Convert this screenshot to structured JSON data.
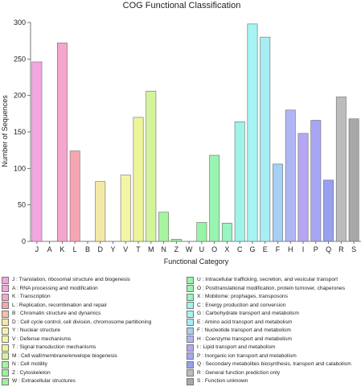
{
  "chart_data": {
    "type": "bar",
    "title": "COG Functional Classification",
    "xlabel": "Functional Category",
    "ylabel": "Number of Sequences",
    "ylim": [
      0,
      300
    ],
    "yticks": [
      "0",
      "50",
      "100",
      "150",
      "200",
      "250",
      "300"
    ],
    "grid": false,
    "categories": [
      "J",
      "A",
      "K",
      "L",
      "B",
      "D",
      "Y",
      "V",
      "T",
      "M",
      "N",
      "Z",
      "W",
      "U",
      "O",
      "X",
      "C",
      "G",
      "E",
      "F",
      "H",
      "I",
      "P",
      "Q",
      "R",
      "S"
    ],
    "values": [
      246,
      0,
      272,
      124,
      0,
      82,
      0,
      91,
      170,
      206,
      40,
      3,
      0,
      26,
      118,
      25,
      164,
      298,
      280,
      106,
      180,
      148,
      166,
      84,
      198,
      168
    ],
    "colors": [
      "#f4a6e0",
      "#f4a6e0",
      "#f4a6cc",
      "#f4a6b2",
      "#f4c0a6",
      "#f4e8a6",
      "#f4f4a6",
      "#f4f4a6",
      "#eef49a",
      "#d4f49a",
      "#a6f4a0",
      "#98f498",
      "#98f498",
      "#98f4a6",
      "#98f4b0",
      "#98f4c0",
      "#9ef4e8",
      "#a6f4f4",
      "#a6eef4",
      "#a6d0f4",
      "#b0b6f4",
      "#b6a6f4",
      "#a6a6f4",
      "#98a0f0",
      "#bcbcbc",
      "#a8a8a8"
    ],
    "legend_placement": "bottom",
    "legend": [
      {
        "code": "J",
        "text": "J : Translation, ribosomal structure and biogenesis",
        "color": "#f4a6e0"
      },
      {
        "code": "A",
        "text": "A : RNA processing and modification",
        "color": "#f4a6e0"
      },
      {
        "code": "K",
        "text": "K : Transcription",
        "color": "#f4a6cc"
      },
      {
        "code": "L",
        "text": "L : Replication, recombination and repair",
        "color": "#f4a6b2"
      },
      {
        "code": "B",
        "text": "B : Chromatin structure and dynamics",
        "color": "#f4c0a6"
      },
      {
        "code": "D",
        "text": "D : Cell cycle control, cell division, chromosome partitioning",
        "color": "#f4e8a6"
      },
      {
        "code": "Y",
        "text": "Y : Nuclear structure",
        "color": "#f4f4a6"
      },
      {
        "code": "V",
        "text": "V : Defense mechanisms",
        "color": "#f4f4a6"
      },
      {
        "code": "T",
        "text": "T : Signal transduction mechanisms",
        "color": "#eef49a"
      },
      {
        "code": "M",
        "text": "M : Cell wall/membrane/envelope biogenesis",
        "color": "#d4f49a"
      },
      {
        "code": "N",
        "text": "N : Cell motility",
        "color": "#a6f4a0"
      },
      {
        "code": "Z",
        "text": "Z : Cytoskeleton",
        "color": "#98f498"
      },
      {
        "code": "W",
        "text": "W : Extracellular structures",
        "color": "#98f498"
      },
      {
        "code": "U",
        "text": "U : Intracellular trafficking, secretion, and vesicular transport",
        "color": "#98f4a6"
      },
      {
        "code": "O",
        "text": "O : Posttranslational modification, protein turnover, chaperones",
        "color": "#98f4b0"
      },
      {
        "code": "X",
        "text": "X : Mobilome: prophages, transposons",
        "color": "#98f4c0"
      },
      {
        "code": "C",
        "text": "C : Energy production and conversion",
        "color": "#9ef4e8"
      },
      {
        "code": "G",
        "text": "G : Carbohydrate transport and metabolism",
        "color": "#a6f4f4"
      },
      {
        "code": "E",
        "text": "E : Amino acid transport and metabolism",
        "color": "#a6eef4"
      },
      {
        "code": "F",
        "text": "F : Nucleotide transport and metabolism",
        "color": "#a6d0f4"
      },
      {
        "code": "H",
        "text": "H : Coenzyme transport and metabolism",
        "color": "#b0b6f4"
      },
      {
        "code": "I",
        "text": "I : Lipid transport and metabolism",
        "color": "#b6a6f4"
      },
      {
        "code": "P",
        "text": "P : Inorganic ion transport and metabolism",
        "color": "#a6a6f4"
      },
      {
        "code": "Q",
        "text": "Q : Secondary metabolites biosynthesis, transport and catabolism",
        "color": "#98a0f0"
      },
      {
        "code": "R",
        "text": "R : General function prediction only",
        "color": "#bcbcbc"
      },
      {
        "code": "S",
        "text": "S : Function unknown",
        "color": "#a8a8a8"
      }
    ]
  }
}
